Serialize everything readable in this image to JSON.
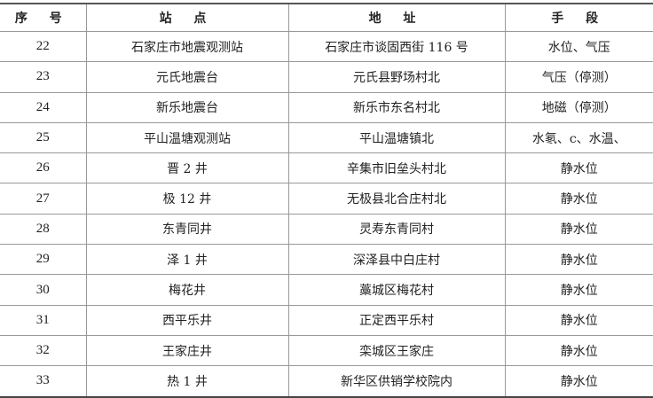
{
  "headers": [
    "序 号",
    "站 点",
    "地 址",
    "手 段"
  ],
  "rows": [
    {
      "no": "22",
      "station": "石家庄市地震观测站",
      "address": "石家庄市谈固西街 116 号",
      "method": "水位、气压"
    },
    {
      "no": "23",
      "station": "元氏地震台",
      "address": "元氏县野场村北",
      "method": "气压（停测）"
    },
    {
      "no": "24",
      "station": "新乐地震台",
      "address": "新乐市东名村北",
      "method": "地磁（停测）"
    },
    {
      "no": "25",
      "station": "平山温塘观测站",
      "address": "平山温塘镇北",
      "method": "水氡、c、水温、"
    },
    {
      "no": "26",
      "station": "晋 2 井",
      "address": "辛集市旧垒头村北",
      "method": "静水位"
    },
    {
      "no": "27",
      "station": "极 12 井",
      "address": "无极县北合庄村北",
      "method": "静水位"
    },
    {
      "no": "28",
      "station": "东青同井",
      "address": "灵寿东青同村",
      "method": "静水位"
    },
    {
      "no": "29",
      "station": "泽 1 井",
      "address": "深泽县中白庄村",
      "method": "静水位"
    },
    {
      "no": "30",
      "station": "梅花井",
      "address": "藁城区梅花村",
      "method": "静水位"
    },
    {
      "no": "31",
      "station": "西平乐井",
      "address": "正定西平乐村",
      "method": "静水位"
    },
    {
      "no": "32",
      "station": "王家庄井",
      "address": "栾城区王家庄",
      "method": "静水位"
    },
    {
      "no": "33",
      "station": "热 1 井",
      "address": "新华区供销学校院内",
      "method": "静水位"
    }
  ]
}
